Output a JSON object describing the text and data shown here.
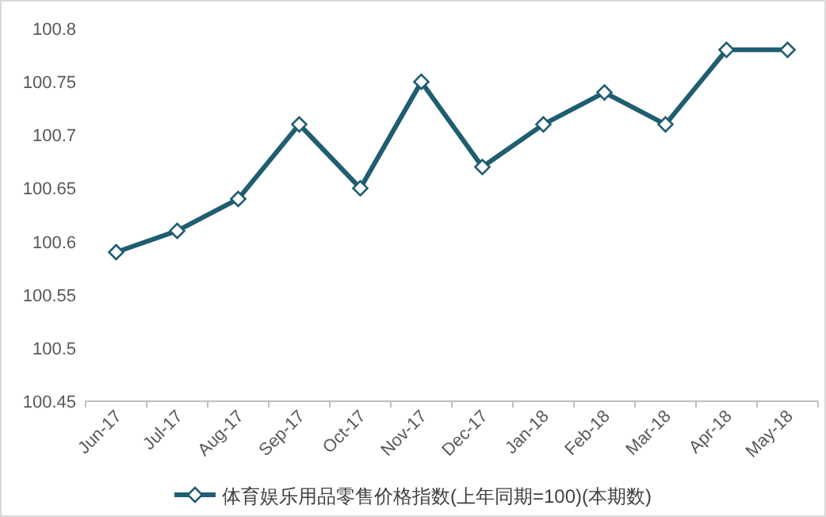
{
  "chart_data": {
    "type": "line",
    "categories": [
      "Jun-17",
      "Jul-17",
      "Aug-17",
      "Sep-17",
      "Oct-17",
      "Nov-17",
      "Dec-17",
      "Jan-18",
      "Feb-18",
      "Mar-18",
      "Apr-18",
      "May-18"
    ],
    "series": [
      {
        "name": "体育娱乐用品零售价格指数(上年同期=100)(本期数)",
        "color": "#1f5d70",
        "values": [
          100.59,
          100.61,
          100.64,
          100.71,
          100.65,
          100.75,
          100.67,
          100.71,
          100.74,
          100.71,
          100.78,
          100.78
        ]
      }
    ],
    "ylim": [
      100.45,
      100.8
    ],
    "yticks": [
      100.45,
      100.5,
      100.55,
      100.6,
      100.65,
      100.7,
      100.75,
      100.8
    ],
    "legend": "bottom",
    "marker": "diamond",
    "line_style": "solid"
  }
}
